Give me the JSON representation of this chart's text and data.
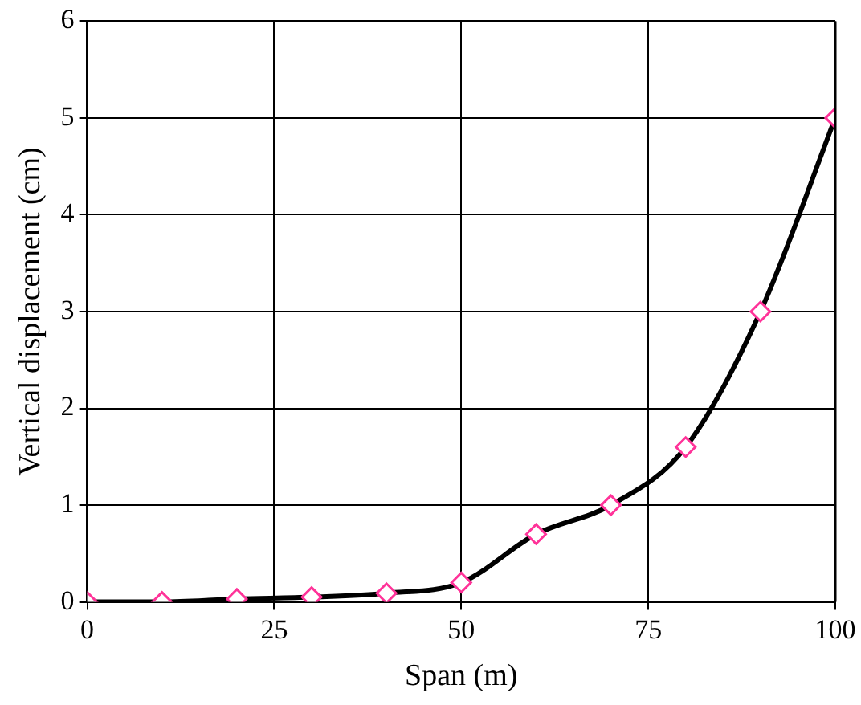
{
  "chart_data": {
    "type": "line",
    "xlabel": "Span (m)",
    "ylabel": "Vertical displacement (cm)",
    "x": [
      0,
      10,
      20,
      30,
      40,
      50,
      60,
      70,
      80,
      90,
      100
    ],
    "series": [
      {
        "color": "#000000",
        "values": [
          0,
          0,
          0.03,
          0.05,
          0.09,
          0.2,
          0.7,
          1.0,
          1.6,
          3.0,
          5.0
        ]
      }
    ],
    "xlim": [
      0,
      100
    ],
    "xticks": [
      0,
      25,
      50,
      75,
      100
    ],
    "ylim": [
      0,
      6
    ],
    "yticks": [
      0,
      1,
      2,
      3,
      4,
      5,
      6
    ],
    "grid": true,
    "marker": "diamond",
    "line_style": "solid",
    "legend": false
  }
}
